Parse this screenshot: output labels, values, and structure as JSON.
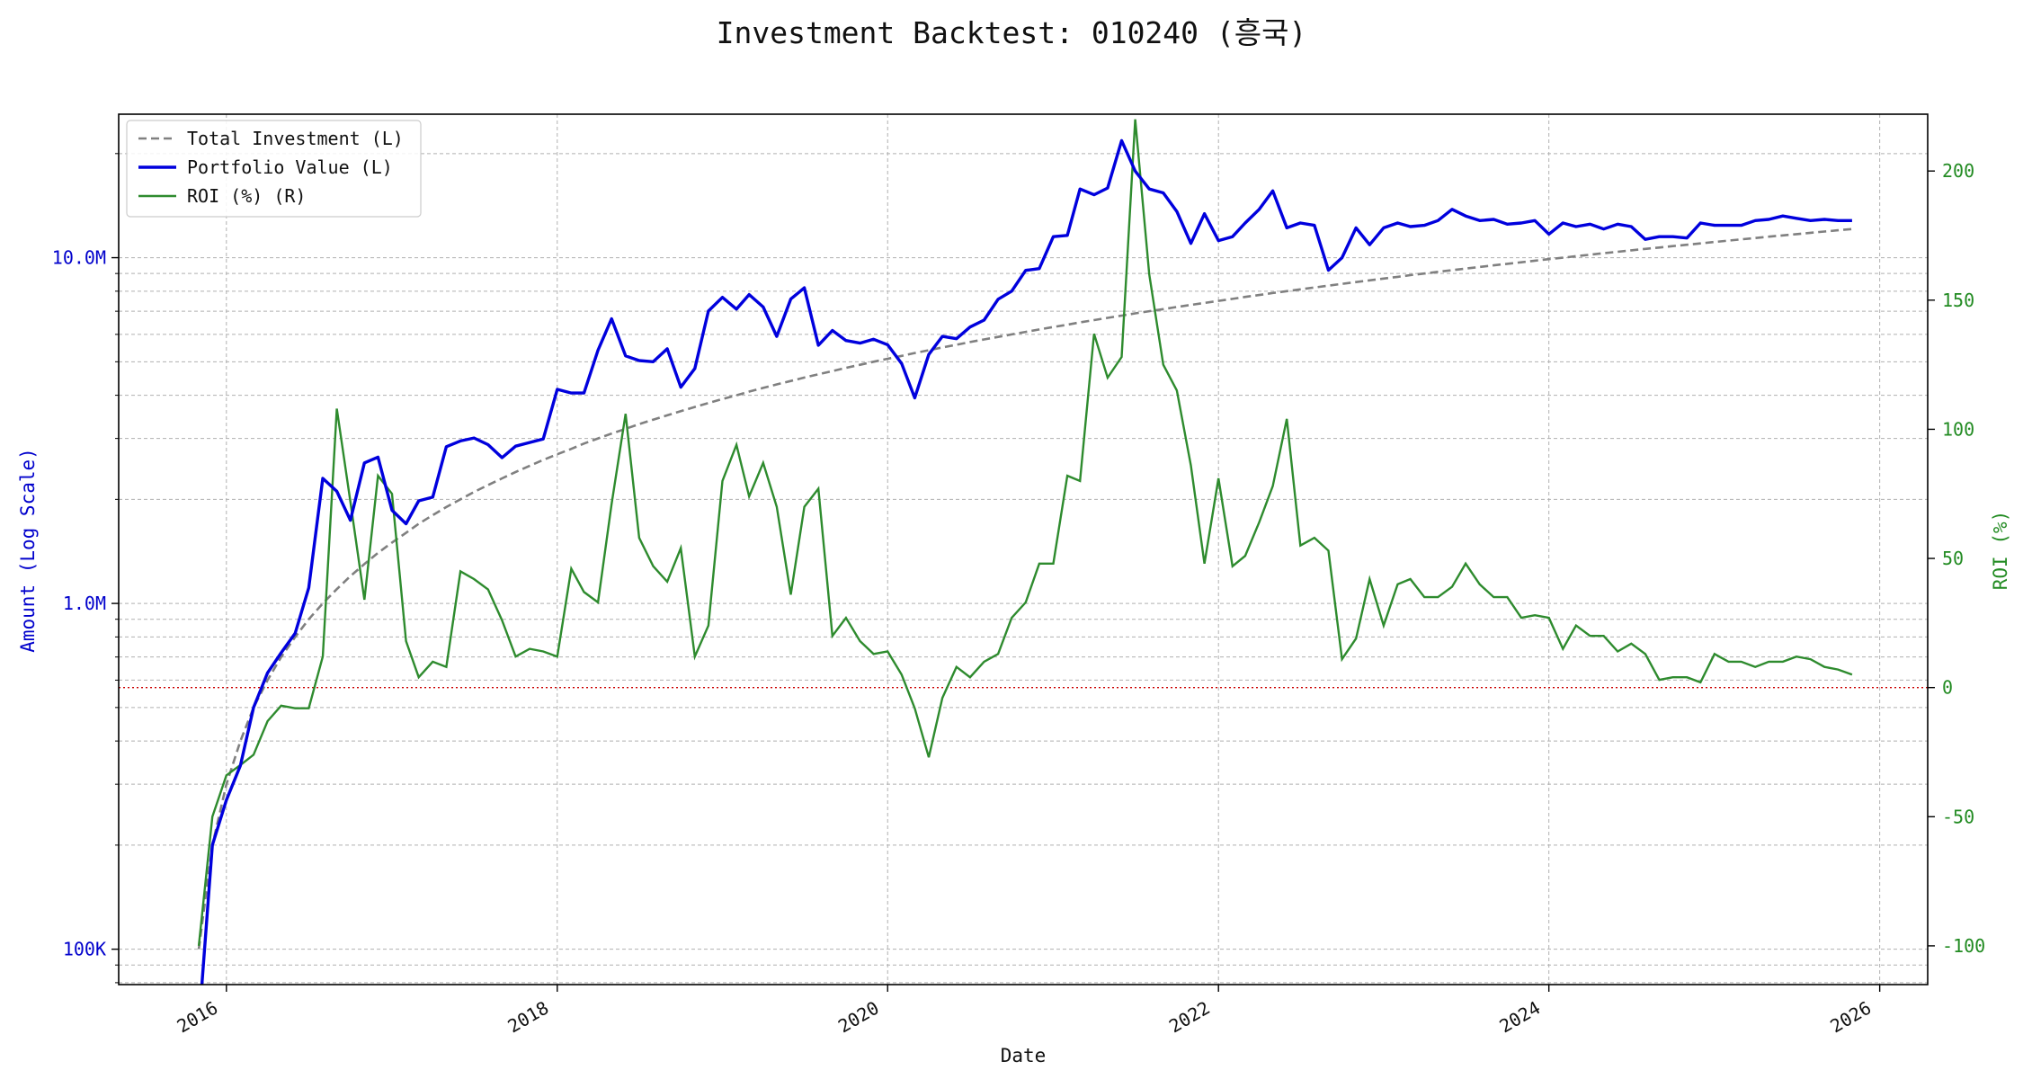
{
  "colors": {
    "left_axis": "#0000cc",
    "right_axis": "#228b22",
    "portfolio": "#0000dd",
    "investment": "#808080",
    "roi": "#2e8b2e",
    "zero_line": "#cc0000",
    "grid": "#b0b0b0"
  },
  "chart_data": {
    "type": "line",
    "title": "Investment Backtest: 010240 (흥국)",
    "xlabel": "Date",
    "ylabel_left": "Amount (Log Scale)",
    "ylabel_right": "ROI (%)",
    "left_scale": "log",
    "grid": true,
    "legend_placement": "top-left",
    "x_tick_labels": [
      "2016",
      "2018",
      "2020",
      "2022",
      "2024",
      "2026"
    ],
    "x_range": [
      "2015-05-08",
      "2026-04-17"
    ],
    "left_ticks": [
      {
        "value": 100000,
        "label": "100K"
      },
      {
        "value": 1000000,
        "label": "1.0M"
      },
      {
        "value": 10000000,
        "label": "10.0M"
      }
    ],
    "left_range": [
      79000,
      26000000
    ],
    "right_ticks": [
      -100,
      -50,
      0,
      50,
      100,
      150,
      200
    ],
    "right_range": [
      -115,
      222
    ],
    "reference_line": {
      "axis": "right",
      "value": 0,
      "style": "dotted"
    },
    "x": [
      "2015-11-01",
      "2015-12-01",
      "2016-01-01",
      "2016-02-01",
      "2016-03-01",
      "2016-04-01",
      "2016-05-01",
      "2016-06-01",
      "2016-07-01",
      "2016-08-01",
      "2016-09-01",
      "2016-10-01",
      "2016-11-01",
      "2016-12-01",
      "2017-01-01",
      "2017-02-01",
      "2017-03-01",
      "2017-04-01",
      "2017-05-01",
      "2017-06-01",
      "2017-07-01",
      "2017-08-01",
      "2017-09-01",
      "2017-10-01",
      "2017-11-01",
      "2017-12-01",
      "2018-01-01",
      "2018-02-01",
      "2018-03-01",
      "2018-04-01",
      "2018-05-01",
      "2018-06-01",
      "2018-07-01",
      "2018-08-01",
      "2018-09-01",
      "2018-10-01",
      "2018-11-01",
      "2018-12-01",
      "2019-01-01",
      "2019-02-01",
      "2019-03-01",
      "2019-04-01",
      "2019-05-01",
      "2019-06-01",
      "2019-07-01",
      "2019-08-01",
      "2019-09-01",
      "2019-10-01",
      "2019-11-01",
      "2019-12-01",
      "2020-01-01",
      "2020-02-01",
      "2020-03-01",
      "2020-04-01",
      "2020-05-01",
      "2020-06-01",
      "2020-07-01",
      "2020-08-01",
      "2020-09-01",
      "2020-10-01",
      "2020-11-01",
      "2020-12-01",
      "2021-01-01",
      "2021-02-01",
      "2021-03-01",
      "2021-04-01",
      "2021-05-01",
      "2021-06-01",
      "2021-07-01",
      "2021-08-01",
      "2021-09-01",
      "2021-10-01",
      "2021-11-01",
      "2021-12-01",
      "2022-01-01",
      "2022-02-01",
      "2022-03-01",
      "2022-04-01",
      "2022-05-01",
      "2022-06-01",
      "2022-07-01",
      "2022-08-01",
      "2022-09-01",
      "2022-10-01",
      "2022-11-01",
      "2022-12-01",
      "2023-01-01",
      "2023-02-01",
      "2023-03-01",
      "2023-04-01",
      "2023-05-01",
      "2023-06-01",
      "2023-07-01",
      "2023-08-01",
      "2023-09-01",
      "2023-10-01",
      "2023-11-01",
      "2023-12-01",
      "2024-01-01",
      "2024-02-01",
      "2024-03-01",
      "2024-04-01",
      "2024-05-01",
      "2024-06-01",
      "2024-07-01",
      "2024-08-01",
      "2024-09-01",
      "2024-10-01",
      "2024-11-01",
      "2024-12-01",
      "2025-01-01",
      "2025-02-01",
      "2025-03-01",
      "2025-04-01",
      "2025-05-01",
      "2025-06-01",
      "2025-07-01",
      "2025-08-01",
      "2025-09-01",
      "2025-10-01",
      "2025-11-01"
    ],
    "series": [
      {
        "name": "Total Investment (L)",
        "axis": "left",
        "style": "dashed",
        "values": [
          100000,
          200000,
          300000,
          400000,
          500000,
          600000,
          700000,
          800000,
          900000,
          1000000,
          1100000,
          1200000,
          1300000,
          1400000,
          1500000,
          1600000,
          1700000,
          1800000,
          1900000,
          2000000,
          2100000,
          2200000,
          2300000,
          2400000,
          2500000,
          2600000,
          2700000,
          2800000,
          2900000,
          3000000,
          3100000,
          3200000,
          3300000,
          3400000,
          3500000,
          3600000,
          3700000,
          3800000,
          3900000,
          4000000,
          4100000,
          4200000,
          4300000,
          4400000,
          4500000,
          4600000,
          4700000,
          4800000,
          4900000,
          5000000,
          5100000,
          5200000,
          5300000,
          5400000,
          5500000,
          5600000,
          5700000,
          5800000,
          5900000,
          6000000,
          6100000,
          6200000,
          6300000,
          6400000,
          6500000,
          6600000,
          6700000,
          6800000,
          6900000,
          7000000,
          7100000,
          7200000,
          7300000,
          7400000,
          7500000,
          7600000,
          7700000,
          7800000,
          7900000,
          8000000,
          8100000,
          8200000,
          8300000,
          8400000,
          8500000,
          8600000,
          8700000,
          8800000,
          8900000,
          9000000,
          9100000,
          9200000,
          9300000,
          9400000,
          9500000,
          9600000,
          9700000,
          9800000,
          9900000,
          10000000,
          10100000,
          10200000,
          10300000,
          10400000,
          10500000,
          10600000,
          10700000,
          10800000,
          10900000,
          11000000,
          11100000,
          11200000,
          11300000,
          11400000,
          11500000,
          11600000,
          11700000,
          11800000,
          11900000,
          12000000,
          12100000
        ]
      },
      {
        "name": "Portfolio Value (L)",
        "axis": "left",
        "style": "solid",
        "values": [
          60000,
          200000,
          270000,
          340000,
          500000,
          630000,
          720000,
          820000,
          1110000,
          2300000,
          2110000,
          1740000,
          2550000,
          2650000,
          1860000,
          1700000,
          1980000,
          2030000,
          2840000,
          2950000,
          3010000,
          2880000,
          2640000,
          2850000,
          2920000,
          2990000,
          4160000,
          4060000,
          4060000,
          5400000,
          6660000,
          5200000,
          5040000,
          5000000,
          5450000,
          4220000,
          4780000,
          7010000,
          7680000,
          7100000,
          7820000,
          7200000,
          5920000,
          7590000,
          8180000,
          5580000,
          6160000,
          5760000,
          5660000,
          5810000,
          5600000,
          4940000,
          3930000,
          5250000,
          5920000,
          5830000,
          6300000,
          6600000,
          7580000,
          8000000,
          9190000,
          9300000,
          11500000,
          11600000,
          15800000,
          15200000,
          15900000,
          21800000,
          17800000,
          15800000,
          15400000,
          13600000,
          11000000,
          13400000,
          11200000,
          11500000,
          12600000,
          13800000,
          15600000,
          12200000,
          12600000,
          12400000,
          9200000,
          10000000,
          12200000,
          10900000,
          12200000,
          12600000,
          12300000,
          12400000,
          12800000,
          13800000,
          13200000,
          12800000,
          12900000,
          12500000,
          12600000,
          12800000,
          11700000,
          12600000,
          12300000,
          12500000,
          12100000,
          12500000,
          12300000,
          11300000,
          11500000,
          11500000,
          11400000,
          12600000,
          12400000,
          12400000,
          12400000,
          12800000,
          12900000,
          13200000,
          13000000,
          12800000,
          12900000,
          12800000,
          12800000
        ]
      },
      {
        "name": "ROI (%) (R)",
        "axis": "right",
        "style": "solid",
        "values": [
          -100,
          -50,
          -34,
          -30,
          -26,
          -13,
          -7,
          -8,
          -8,
          12,
          108,
          72,
          34,
          82,
          75,
          18,
          4,
          10,
          8,
          45,
          42,
          38,
          26,
          12,
          15,
          14,
          12,
          46,
          37,
          33,
          71,
          106,
          58,
          47,
          41,
          54,
          12,
          24,
          80,
          94,
          74,
          87,
          70,
          36,
          70,
          77,
          20,
          27,
          18,
          13,
          14,
          5,
          -8,
          -27,
          -4,
          8,
          4,
          10,
          13,
          27,
          33,
          48,
          48,
          82,
          80,
          137,
          120,
          128,
          220,
          160,
          125,
          115,
          86,
          48,
          81,
          47,
          51,
          64,
          78,
          104,
          55,
          58,
          53,
          11,
          19,
          42,
          24,
          40,
          42,
          35,
          35,
          39,
          48,
          40,
          35,
          35,
          27,
          28,
          27,
          15,
          24,
          20,
          20,
          14,
          17,
          13,
          3,
          4,
          4,
          2,
          13,
          10,
          10,
          8,
          10,
          10,
          12,
          11,
          8,
          7,
          5
        ]
      }
    ]
  }
}
